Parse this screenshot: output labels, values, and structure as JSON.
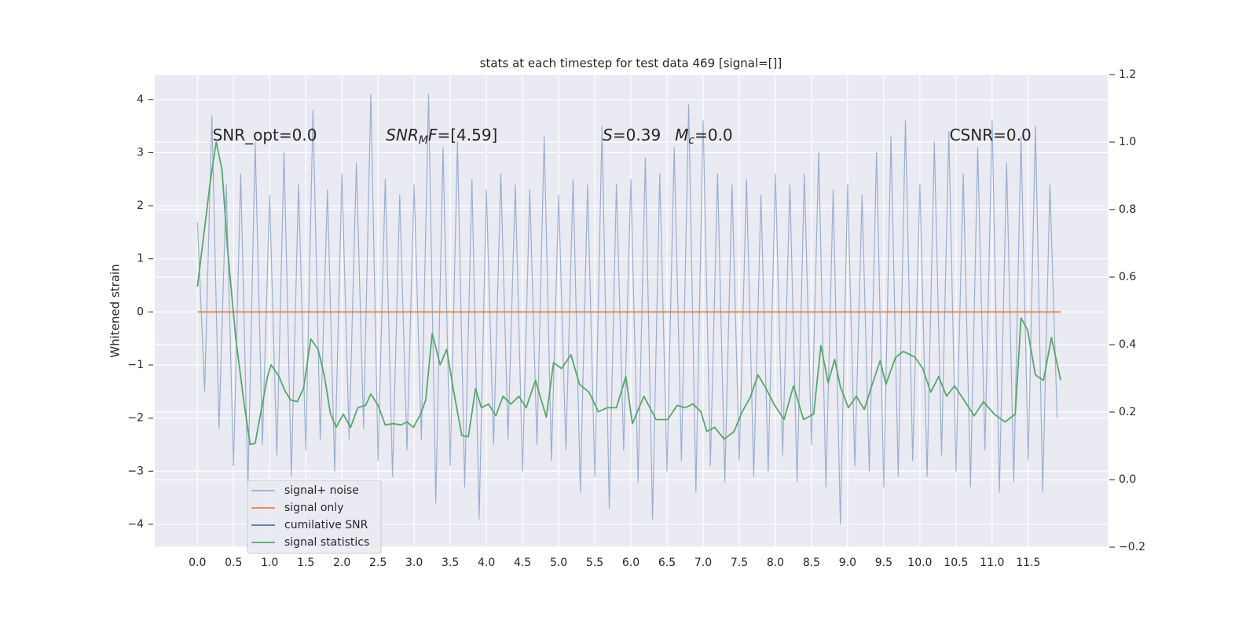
{
  "chart_data": {
    "type": "line",
    "title": "stats at each timestep for test data 469 [signal=[]]",
    "ylabel": "Whitened strain",
    "xlim": [
      -0.59,
      12.6
    ],
    "ylim": [
      -4.43,
      4.47
    ],
    "y2lim": [
      -0.2,
      1.2
    ],
    "grid": true,
    "legend": "lower left",
    "xticks": [
      {
        "value": 0,
        "label": "0.0"
      },
      {
        "value": 0.5,
        "label": "0.5"
      },
      {
        "value": 1,
        "label": "1.0"
      },
      {
        "value": 1.5,
        "label": "1.5"
      },
      {
        "value": 2,
        "label": "2.0"
      },
      {
        "value": 2.5,
        "label": "2.5"
      },
      {
        "value": 3,
        "label": "3.0"
      },
      {
        "value": 3.5,
        "label": "3.5"
      },
      {
        "value": 4,
        "label": "4.0"
      },
      {
        "value": 4.5,
        "label": "4.5"
      },
      {
        "value": 5,
        "label": "5.0"
      },
      {
        "value": 5.5,
        "label": "5.5"
      },
      {
        "value": 6,
        "label": "6.0"
      },
      {
        "value": 6.5,
        "label": "6.5"
      },
      {
        "value": 7,
        "label": "7.0"
      },
      {
        "value": 7.5,
        "label": "7.5"
      },
      {
        "value": 8,
        "label": "8.0"
      },
      {
        "value": 8.5,
        "label": "8.5"
      },
      {
        "value": 9,
        "label": "9.0"
      },
      {
        "value": 9.5,
        "label": "9.5"
      },
      {
        "value": 10,
        "label": "10.0"
      },
      {
        "value": 10.5,
        "label": "10.5"
      },
      {
        "value": 11,
        "label": "11.0"
      },
      {
        "value": 11.5,
        "label": "11.5"
      }
    ],
    "yticks": [
      {
        "value": -4,
        "label": "−4"
      },
      {
        "value": -3,
        "label": "−3"
      },
      {
        "value": -2,
        "label": "−2"
      },
      {
        "value": -1,
        "label": "−1"
      },
      0,
      1,
      2,
      3,
      4
    ],
    "y2ticks": [
      {
        "value": -0.2,
        "label": "−0.2"
      },
      {
        "value": 0,
        "label": "0.0"
      },
      {
        "value": 0.2,
        "label": "0.2"
      },
      {
        "value": 0.4,
        "label": "0.4"
      },
      {
        "value": 0.6,
        "label": "0.6"
      },
      {
        "value": 0.8,
        "label": "0.8"
      },
      {
        "value": 1,
        "label": "1.0"
      },
      {
        "value": 1.2,
        "label": "1.2"
      }
    ],
    "series": [
      {
        "name": "signal+ noise",
        "color": "#4c72b0",
        "opacity": 0.5,
        "x": [
          0,
          0.1,
          0.2,
          0.3,
          0.4,
          0.5,
          0.6,
          0.7,
          0.8,
          0.9,
          1,
          1.1,
          1.2,
          1.3,
          1.4,
          1.5,
          1.6,
          1.7,
          1.8,
          1.9,
          2,
          2.1,
          2.2,
          2.3,
          2.4,
          2.5,
          2.6,
          2.7,
          2.8,
          2.9,
          3,
          3.1,
          3.2,
          3.3,
          3.4,
          3.5,
          3.6,
          3.7,
          3.8,
          3.9,
          4,
          4.1,
          4.2,
          4.3,
          4.4,
          4.5,
          4.6,
          4.7,
          4.8,
          4.9,
          5,
          5.1,
          5.2,
          5.3,
          5.4,
          5.5,
          5.6,
          5.7,
          5.8,
          5.9,
          6,
          6.1,
          6.2,
          6.3,
          6.4,
          6.5,
          6.6,
          6.7,
          6.8,
          6.9,
          7,
          7.1,
          7.2,
          7.3,
          7.4,
          7.5,
          7.6,
          7.7,
          7.8,
          7.9,
          8,
          8.1,
          8.2,
          8.3,
          8.4,
          8.5,
          8.6,
          8.7,
          8.8,
          8.9,
          9,
          9.1,
          9.2,
          9.3,
          9.4,
          9.5,
          9.6,
          9.7,
          9.8,
          9.9,
          10,
          10.1,
          10.2,
          10.3,
          10.4,
          10.5,
          10.6,
          10.7,
          10.8,
          10.9,
          11,
          11.1,
          11.2,
          11.3,
          11.4,
          11.5,
          11.6,
          11.7,
          11.8,
          11.9
        ],
        "values": [
          1.7,
          -1.5,
          3.7,
          -2.2,
          2.4,
          -2.9,
          2.6,
          -3.3,
          3.2,
          -2.5,
          2.2,
          -2.7,
          3.0,
          -3.1,
          2.4,
          -2.6,
          3.8,
          -2.4,
          2.3,
          -3.0,
          2.6,
          -2.4,
          2.8,
          -2.2,
          4.1,
          -2.8,
          2.5,
          -3.1,
          2.2,
          -2.6,
          2.4,
          -2.4,
          4.1,
          -3.6,
          3.1,
          -2.9,
          3.2,
          -3.3,
          2.5,
          -3.9,
          2.3,
          -2.5,
          2.6,
          -2.4,
          2.4,
          -3.0,
          2.3,
          -2.5,
          3.3,
          -2.8,
          2.2,
          -2.6,
          2.5,
          -3.4,
          2.4,
          -3.1,
          3.5,
          -3.7,
          2.4,
          -2.6,
          2.5,
          -3.2,
          2.9,
          -3.9,
          2.6,
          -3.0,
          3.1,
          -2.8,
          3.9,
          -3.4,
          3.6,
          -2.9,
          2.6,
          -3.2,
          2.4,
          -2.8,
          2.5,
          -3.1,
          2.2,
          -3.0,
          2.6,
          -2.7,
          2.4,
          -3.2,
          2.6,
          -2.5,
          3.0,
          -3.3,
          2.3,
          -4.0,
          2.4,
          -2.9,
          2.2,
          -3.0,
          3.0,
          -3.3,
          3.3,
          -3.1,
          3.6,
          -2.8,
          2.4,
          -3.1,
          3.2,
          -2.7,
          3.4,
          -3.0,
          2.6,
          -3.3,
          3.1,
          -2.6,
          3.6,
          -3.4,
          2.8,
          -3.2,
          3.3,
          -2.8,
          3.5,
          -3.4,
          2.4,
          -2.0
        ]
      },
      {
        "name": "signal only",
        "color": "#dd8452",
        "x": [
          0,
          11.95
        ],
        "values": [
          0,
          0
        ]
      },
      {
        "name": "cumilative SNR",
        "color": "#4c72b0",
        "x": [],
        "values": []
      },
      {
        "name": "signal statistics",
        "color": "#55a868",
        "axis": "y2",
        "x": [
          0,
          0.1,
          0.18,
          0.26,
          0.34,
          0.42,
          0.53,
          0.64,
          0.73,
          0.8,
          0.89,
          0.97,
          1.02,
          1.13,
          1.21,
          1.29,
          1.38,
          1.47,
          1.57,
          1.67,
          1.76,
          1.84,
          1.92,
          2.02,
          2.12,
          2.22,
          2.33,
          2.4,
          2.5,
          2.6,
          2.71,
          2.82,
          2.9,
          2.99,
          3.09,
          3.16,
          3.25,
          3.36,
          3.45,
          3.55,
          3.66,
          3.75,
          3.85,
          3.93,
          4.03,
          4.13,
          4.23,
          4.34,
          4.45,
          4.55,
          4.68,
          4.83,
          4.93,
          5.04,
          5.17,
          5.29,
          5.42,
          5.55,
          5.67,
          5.8,
          5.93,
          6.02,
          6.18,
          6.35,
          6.51,
          6.64,
          6.75,
          6.86,
          6.97,
          7.05,
          7.16,
          7.29,
          7.43,
          7.54,
          7.65,
          7.76,
          7.87,
          7.98,
          8.12,
          8.25,
          8.39,
          8.53,
          8.63,
          8.73,
          8.82,
          8.9,
          9.01,
          9.12,
          9.23,
          9.34,
          9.45,
          9.53,
          9.66,
          9.77,
          9.93,
          10.04,
          10.15,
          10.26,
          10.37,
          10.48,
          10.61,
          10.75,
          10.88,
          11.03,
          11.18,
          11.32,
          11.4,
          11.49,
          11.6,
          11.71,
          11.82,
          11.95
        ],
        "values": [
          0.572,
          0.746,
          0.885,
          1.0,
          0.92,
          0.676,
          0.421,
          0.236,
          0.104,
          0.108,
          0.213,
          0.305,
          0.34,
          0.305,
          0.264,
          0.236,
          0.231,
          0.27,
          0.417,
          0.386,
          0.305,
          0.196,
          0.155,
          0.194,
          0.155,
          0.213,
          0.22,
          0.254,
          0.22,
          0.162,
          0.166,
          0.162,
          0.171,
          0.155,
          0.194,
          0.236,
          0.433,
          0.34,
          0.386,
          0.259,
          0.131,
          0.127,
          0.27,
          0.213,
          0.224,
          0.189,
          0.247,
          0.224,
          0.247,
          0.213,
          0.294,
          0.185,
          0.347,
          0.329,
          0.37,
          0.282,
          0.259,
          0.201,
          0.213,
          0.213,
          0.305,
          0.166,
          0.247,
          0.178,
          0.178,
          0.22,
          0.213,
          0.224,
          0.201,
          0.143,
          0.155,
          0.12,
          0.143,
          0.201,
          0.243,
          0.31,
          0.27,
          0.224,
          0.178,
          0.278,
          0.178,
          0.194,
          0.398,
          0.287,
          0.356,
          0.275,
          0.213,
          0.247,
          0.208,
          0.282,
          0.352,
          0.282,
          0.361,
          0.38,
          0.363,
          0.329,
          0.259,
          0.305,
          0.247,
          0.278,
          0.236,
          0.189,
          0.231,
          0.194,
          0.171,
          0.194,
          0.479,
          0.444,
          0.31,
          0.294,
          0.421,
          0.294
        ]
      }
    ],
    "annotations": [
      {
        "x": 0.21,
        "y": 3.32,
        "parts": [
          {
            "text": "SNR_opt=0.0",
            "style": "normal"
          }
        ]
      },
      {
        "x": 2.61,
        "y": 3.32,
        "parts": [
          {
            "text": "SNR",
            "style": "italic"
          },
          {
            "text": "M",
            "style": "sub"
          },
          {
            "text": "F",
            "style": "italic"
          },
          {
            "text": "=[4.59]",
            "style": "normal"
          }
        ]
      },
      {
        "x": 5.61,
        "y": 3.32,
        "parts": [
          {
            "text": "S",
            "style": "italic"
          },
          {
            "text": "=0.39",
            "style": "normal"
          }
        ]
      },
      {
        "x": 6.61,
        "y": 3.32,
        "parts": [
          {
            "text": "M",
            "style": "italic"
          },
          {
            "text": "c",
            "style": "sub"
          },
          {
            "text": "=0.0",
            "style": "normal"
          }
        ]
      },
      {
        "x": 10.41,
        "y": 3.32,
        "parts": [
          {
            "text": "CSNR=0.0",
            "style": "normal"
          }
        ]
      }
    ]
  }
}
